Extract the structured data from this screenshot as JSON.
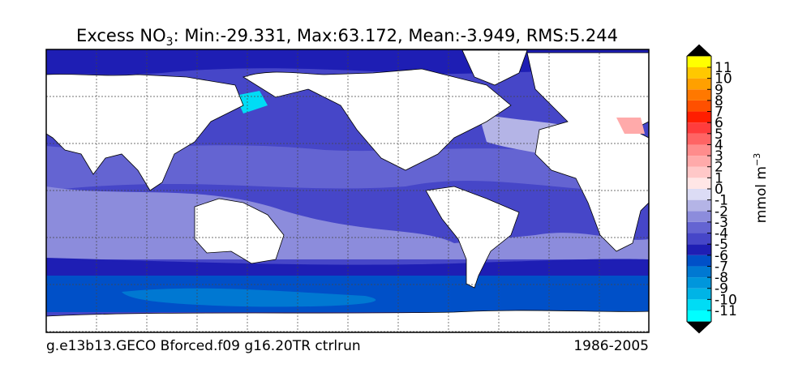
{
  "title": {
    "prefix": "Excess NO",
    "sub": "3",
    "rest": ": Min:-29.331, Max:63.172, Mean:-3.949, RMS:5.244"
  },
  "footer": {
    "left": "g.e13b13.GECO Bforced.f09 g16.20TR ctrlrun",
    "right": "1986-2005"
  },
  "colorbar": {
    "label": "mmol m",
    "label_sup": "−3",
    "ticks": [
      -11,
      -10,
      -9,
      -8,
      -7,
      -6,
      -5,
      -4,
      -3,
      -2,
      -1,
      0,
      1,
      2,
      3,
      4,
      5,
      6,
      7,
      8,
      9,
      10,
      11
    ],
    "colors": [
      "#00ffff",
      "#00dcf5",
      "#00b4e6",
      "#0096dc",
      "#0078d2",
      "#0050c8",
      "#1e1eb4",
      "#4646c8",
      "#6464d2",
      "#8c8cdc",
      "#b4b4e6",
      "#dcdcf5",
      "#ffe6e6",
      "#ffc8c8",
      "#ffaaaa",
      "#ff8c8c",
      "#ff6464",
      "#ff3c3c",
      "#ff1e00",
      "#ff5000",
      "#ff7800",
      "#ffa000",
      "#ffc800",
      "#ffff00"
    ],
    "extend_color": "#000000"
  }
}
